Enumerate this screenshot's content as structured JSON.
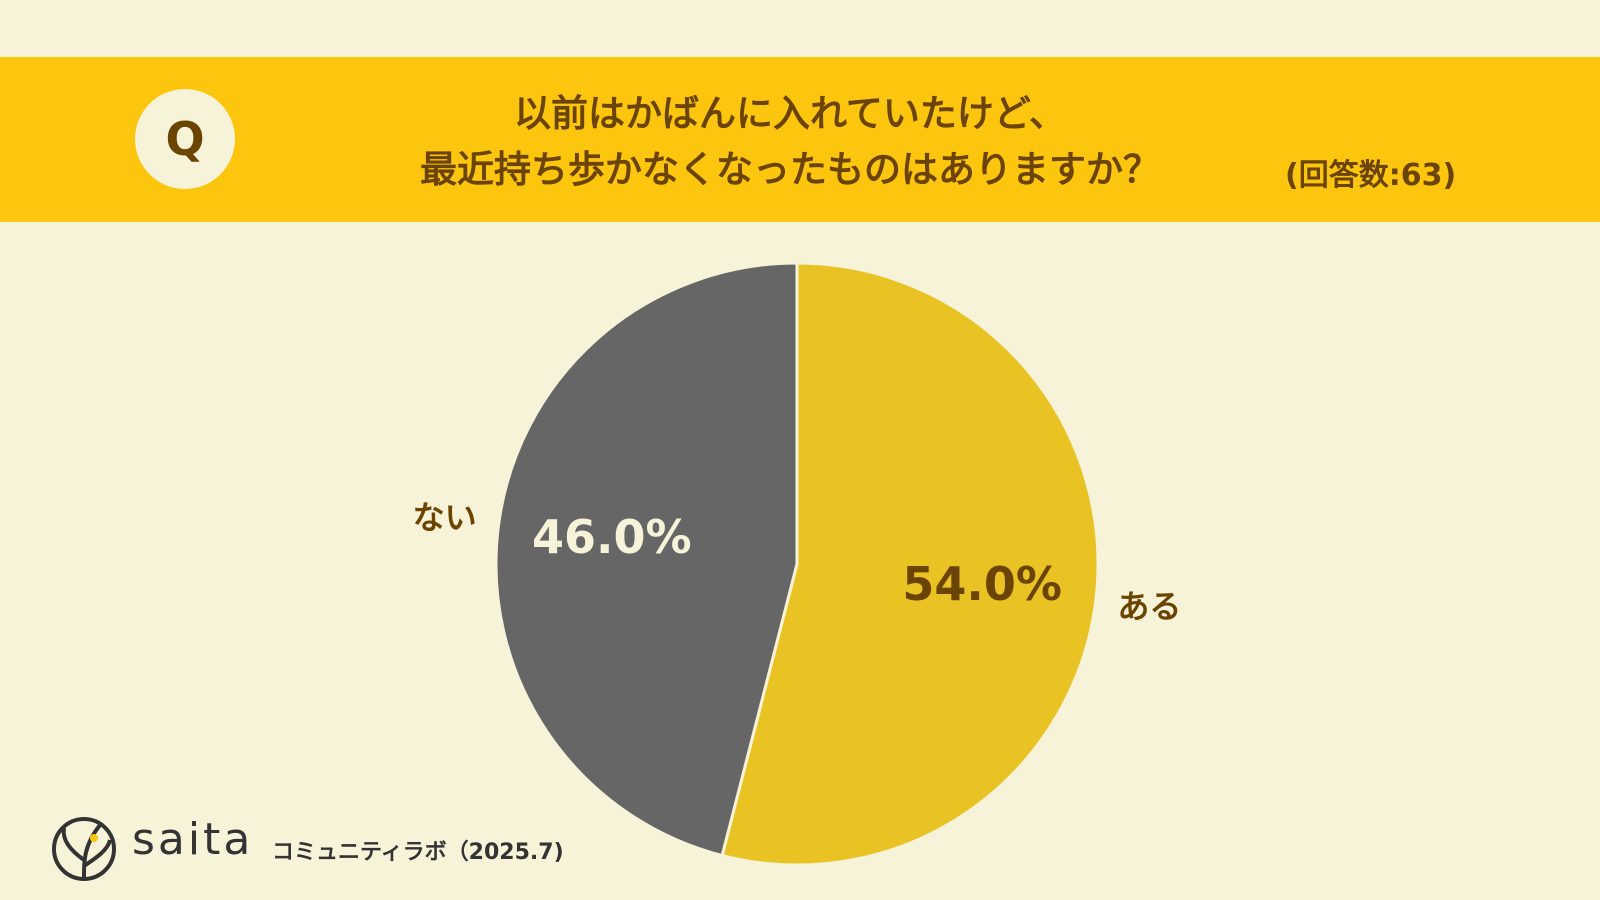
{
  "header": {
    "badge": "Q"
  },
  "chart_data": {
    "type": "pie",
    "title": "以前はかばんに入れていたけど、\n最近持ち歩かなくなったものはありますか？",
    "subtitle": "(回答数:63)",
    "categories": [
      "ある",
      "ない"
    ],
    "values": [
      54.0,
      46.0
    ],
    "value_labels": [
      "54.0%",
      "46.0%"
    ],
    "colors": [
      "#e9c223",
      "#666666"
    ]
  },
  "footer": {
    "brand": "saita",
    "caption": "コミュニティラボ（2025.7)"
  }
}
